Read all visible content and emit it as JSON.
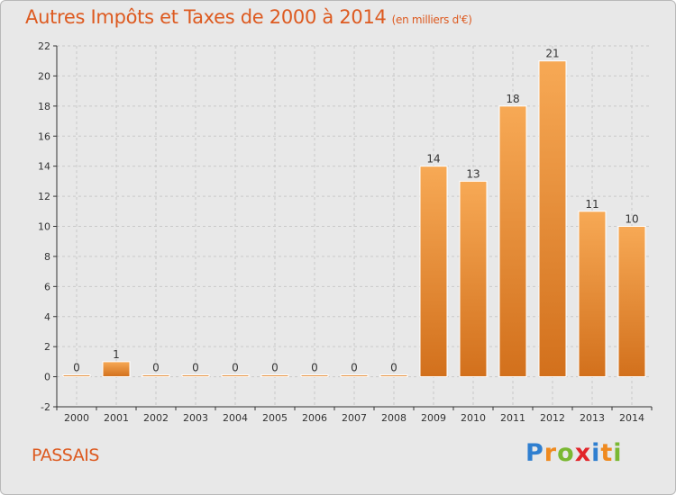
{
  "title": "Autres Impôts et Taxes de 2000 à 2014",
  "unit_note": "(en milliers d'€)",
  "commune": "PASSAIS",
  "logo": {
    "text": "Proxiti",
    "letters": [
      "P",
      "r",
      "o",
      "x",
      "i",
      "t",
      "i"
    ],
    "colors": [
      "#2f7fd0",
      "#ef8a1f",
      "#7ab832",
      "#e2252a",
      "#2f7fd0",
      "#ef8a1f",
      "#7ab832"
    ]
  },
  "colors": {
    "bar_light": "#f7a955",
    "bar_dark": "#d2701c",
    "title": "#dd5a20",
    "axis": "#333333"
  },
  "chart_data": {
    "type": "bar",
    "categories": [
      "2000",
      "2001",
      "2002",
      "2003",
      "2004",
      "2005",
      "2006",
      "2007",
      "2008",
      "2009",
      "2010",
      "2011",
      "2012",
      "2013",
      "2014"
    ],
    "values": [
      0,
      1,
      0,
      0,
      0,
      0,
      0,
      0,
      0,
      14,
      13,
      18,
      21,
      11,
      10
    ],
    "labels": [
      "0",
      "1",
      "0",
      "0",
      "0",
      "0",
      "0",
      "0",
      "0",
      "14",
      "13",
      "18",
      "21",
      "11",
      "10"
    ],
    "title": "Autres Impôts et Taxes de 2000 à 2014",
    "ylim": [
      -2,
      22
    ],
    "yticks": [
      "-2",
      "0",
      "2",
      "4",
      "6",
      "8",
      "10",
      "12",
      "14",
      "16",
      "18",
      "20",
      "22"
    ],
    "grid": true
  }
}
